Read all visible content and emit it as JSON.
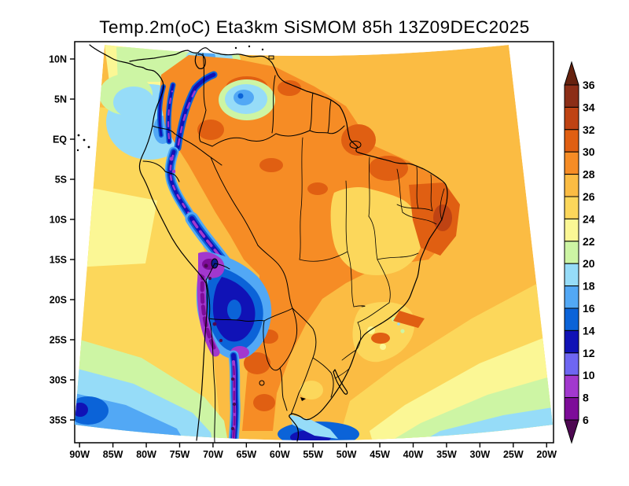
{
  "figure": {
    "title": "Temp.2m(oC) Eta3km SiSMOM 85h 13Z09DEC2025",
    "variable": "Temp.2m(oC)",
    "model": "Eta3km SiSMOM",
    "forecast_hour": "85h",
    "valid_time": "13Z09DEC2025"
  },
  "axes": {
    "x_ticks": [
      "90W",
      "85W",
      "80W",
      "75W",
      "70W",
      "65W",
      "60W",
      "55W",
      "50W",
      "45W",
      "40W",
      "35W",
      "30W",
      "25W",
      "20W"
    ],
    "y_ticks": [
      "10N",
      "5N",
      "EQ",
      "5S",
      "10S",
      "15S",
      "20S",
      "25S",
      "30S",
      "35S"
    ]
  },
  "colorbar": {
    "tick_labels": [
      "36",
      "34",
      "32",
      "30",
      "28",
      "26",
      "24",
      "22",
      "20",
      "18",
      "16",
      "14",
      "12",
      "10",
      "8",
      "6"
    ],
    "cell_colors_top_to_bottom": [
      "#8c2e17",
      "#bf4313",
      "#e05f12",
      "#f68c25",
      "#fbbc43",
      "#fcd75b",
      "#fbf795",
      "#cdf5a4",
      "#96dcf8",
      "#52a8f5",
      "#0b63d8",
      "#1012b6",
      "#6e66f2",
      "#a238ce",
      "#7d0c99"
    ],
    "above_max_color": "#66220f",
    "below_min_color": "#4e0852"
  },
  "palette": {
    "lt6": "#4e0852",
    "t6": "#7d0c99",
    "t8": "#a238ce",
    "t10": "#6e66f2",
    "t12": "#1012b6",
    "t14": "#0b63d8",
    "t16": "#52a8f5",
    "t18": "#96dcf8",
    "t20": "#cdf5a4",
    "t22": "#fbf795",
    "t24": "#fcd75b",
    "t26": "#fbbc43",
    "t28": "#f68c25",
    "t30": "#e05f12",
    "t32": "#bf4313",
    "t34": "#8c2e17",
    "gt36": "#66220f"
  },
  "chart_data": {
    "type": "heatmap",
    "title": "Temp.2m(oC) Eta3km SiSMOM 85h 13Z09DEC2025",
    "xlabel_ticks": [
      "90W",
      "85W",
      "80W",
      "75W",
      "70W",
      "65W",
      "60W",
      "55W",
      "50W",
      "45W",
      "40W",
      "35W",
      "30W",
      "25W",
      "20W"
    ],
    "ylabel_ticks": [
      "10N",
      "5N",
      "EQ",
      "5S",
      "10S",
      "15S",
      "20S",
      "25S",
      "30S",
      "35S"
    ],
    "legend_levels": [
      6,
      8,
      10,
      12,
      14,
      16,
      18,
      20,
      22,
      24,
      26,
      28,
      30,
      32,
      34,
      36
    ],
    "legend_position": "right"
  }
}
